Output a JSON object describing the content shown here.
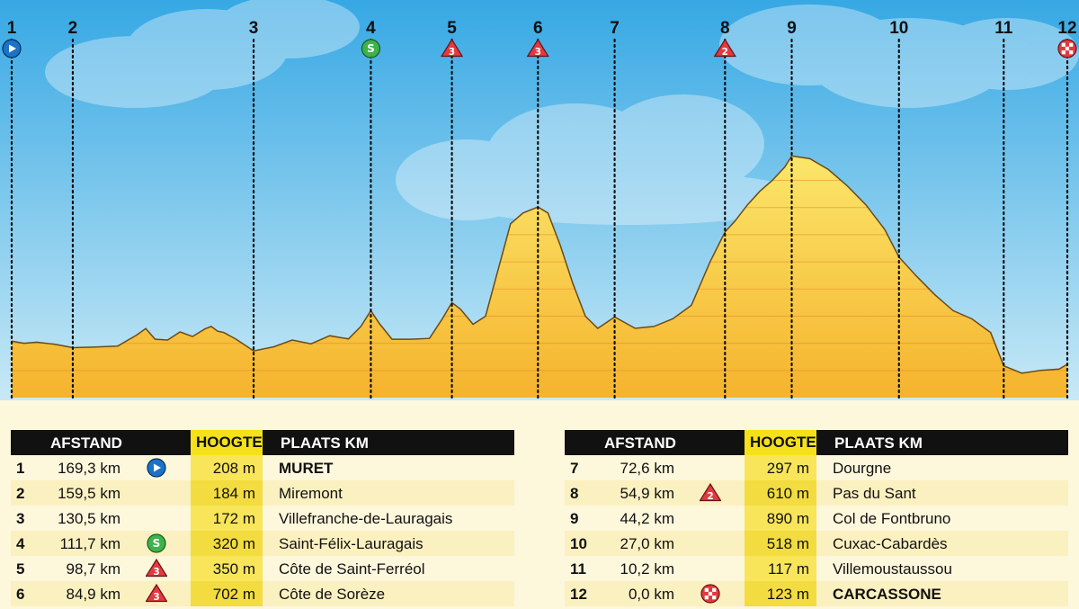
{
  "chart_data": {
    "type": "area",
    "title": "",
    "xlabel": "",
    "ylabel": "",
    "markers": [
      {
        "label": "1",
        "km": 0.0,
        "icon": "start-icon"
      },
      {
        "label": "2",
        "km": 9.8,
        "icon": ""
      },
      {
        "label": "3",
        "km": 38.8,
        "icon": ""
      },
      {
        "label": "4",
        "km": 57.6,
        "icon": "sprint-icon"
      },
      {
        "label": "5",
        "km": 70.6,
        "icon": "climb-cat3-icon"
      },
      {
        "label": "6",
        "km": 84.4,
        "icon": "climb-cat3-icon"
      },
      {
        "label": "7",
        "km": 96.7,
        "icon": ""
      },
      {
        "label": "8",
        "km": 114.4,
        "icon": "climb-cat2-icon"
      },
      {
        "label": "9",
        "km": 125.1,
        "icon": ""
      },
      {
        "label": "10",
        "km": 142.3,
        "icon": ""
      },
      {
        "label": "11",
        "km": 159.1,
        "icon": ""
      },
      {
        "label": "12",
        "km": 169.3,
        "icon": "finish-icon"
      }
    ],
    "x": [
      0,
      2,
      4,
      7,
      9.8,
      13,
      17,
      20,
      21.5,
      23,
      25,
      27,
      29,
      31,
      32,
      33,
      34,
      36,
      38.8,
      42,
      45,
      48,
      51,
      54,
      56,
      57.6,
      59,
      61,
      64,
      67,
      69,
      70.6,
      72,
      74,
      76,
      78,
      80,
      82,
      84.4,
      86,
      88,
      90,
      92,
      94,
      96.7,
      100,
      103,
      106,
      109,
      112,
      114.4,
      116,
      118,
      120,
      122,
      124,
      125.1,
      128,
      131,
      134,
      137,
      140,
      142.3,
      145,
      148,
      151,
      154,
      157,
      159.1,
      162,
      165,
      168,
      169.3
    ],
    "y": [
      208,
      200,
      204,
      196,
      184,
      186,
      190,
      230,
      254,
      215,
      212,
      242,
      225,
      253,
      262,
      245,
      240,
      215,
      172,
      187,
      212,
      198,
      228,
      216,
      262,
      320,
      272,
      215,
      215,
      218,
      288,
      350,
      325,
      270,
      300,
      470,
      640,
      680,
      702,
      680,
      560,
      420,
      300,
      255,
      297,
      255,
      262,
      290,
      340,
      500,
      610,
      650,
      710,
      760,
      800,
      850,
      890,
      880,
      840,
      780,
      710,
      620,
      518,
      450,
      380,
      320,
      290,
      240,
      117,
      90,
      100,
      105,
      123
    ],
    "ylim": [
      0,
      1100
    ],
    "xlim": [
      0,
      169.3
    ],
    "grid": "horizontal"
  },
  "colors": {
    "sky_top": "#36a8e4",
    "sky_bottom": "#c8e9f6",
    "profile_top": "#fbe66a",
    "profile_bottom": "#f5b32d",
    "start": "#1a73c9",
    "sprint": "#3db34a",
    "climb": "#e23a3f",
    "finish": "#e23a3f",
    "header_bg": "#111111",
    "highlight": "#f5e11a"
  },
  "table": {
    "headers": {
      "afstand": "AFSTAND",
      "hoogte": "HOOGTE",
      "plaats": "PLAATS KM"
    },
    "left": [
      {
        "num": "1",
        "dist": "169,3 km",
        "icon": "start-icon",
        "height": "208 m",
        "place": "MURET",
        "bold": true
      },
      {
        "num": "2",
        "dist": "159,5 km",
        "icon": "",
        "height": "184 m",
        "place": "Miremont",
        "bold": false
      },
      {
        "num": "3",
        "dist": "130,5 km",
        "icon": "",
        "height": "172 m",
        "place": "Villefranche-de-Lauragais",
        "bold": false
      },
      {
        "num": "4",
        "dist": "111,7 km",
        "icon": "sprint-icon",
        "height": "320 m",
        "place": "Saint-Félix-Lauragais",
        "bold": false
      },
      {
        "num": "5",
        "dist": "98,7 km",
        "icon": "climb-cat3-icon",
        "height": "350 m",
        "place": "Côte de Saint-Ferréol",
        "bold": false
      },
      {
        "num": "6",
        "dist": "84,9 km",
        "icon": "climb-cat3-icon",
        "height": "702 m",
        "place": "Côte de Sorèze",
        "bold": false
      }
    ],
    "right": [
      {
        "num": "7",
        "dist": "72,6 km",
        "icon": "",
        "height": "297 m",
        "place": "Dourgne",
        "bold": false
      },
      {
        "num": "8",
        "dist": "54,9 km",
        "icon": "climb-cat2-icon",
        "height": "610 m",
        "place": "Pas du Sant",
        "bold": false
      },
      {
        "num": "9",
        "dist": "44,2 km",
        "icon": "",
        "height": "890 m",
        "place": "Col de Fontbruno",
        "bold": false
      },
      {
        "num": "10",
        "dist": "27,0 km",
        "icon": "",
        "height": "518 m",
        "place": "Cuxac-Cabardès",
        "bold": false
      },
      {
        "num": "11",
        "dist": "10,2 km",
        "icon": "",
        "height": "117 m",
        "place": "Villemoustaussou",
        "bold": false
      },
      {
        "num": "12",
        "dist": "0,0 km",
        "icon": "finish-icon",
        "height": "123 m",
        "place": "CARCASSONE",
        "bold": true
      }
    ]
  }
}
